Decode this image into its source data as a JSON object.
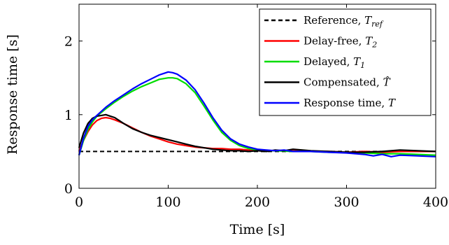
{
  "chart_data": {
    "type": "line",
    "xlabel": "Time [s]",
    "ylabel": "Response time [s]",
    "xlim": [
      0,
      400
    ],
    "ylim": [
      0,
      2.5
    ],
    "xticks": [
      "0",
      "100",
      "200",
      "300",
      "400"
    ],
    "yticks": [
      "0",
      "1",
      "2"
    ],
    "grid": false,
    "legend_position": "top-right",
    "series": [
      {
        "name": "Reference, T_ref",
        "legend_main": "Reference, ",
        "legend_var": "T",
        "legend_sub": "ref",
        "color": "#000000",
        "style": "dashed",
        "x": [
          0,
          400
        ],
        "y": [
          0.5,
          0.5
        ]
      },
      {
        "name": "Delay-free, T_2",
        "legend_main": "Delay-free, ",
        "legend_var": "T",
        "legend_sub": "2",
        "color": "#ff0000",
        "style": "solid",
        "x": [
          0,
          5,
          10,
          15,
          20,
          25,
          30,
          35,
          40,
          50,
          60,
          70,
          80,
          90,
          100,
          110,
          120,
          130,
          140,
          150,
          160,
          170,
          180,
          190,
          200,
          220,
          240,
          260,
          280,
          300,
          320,
          340,
          360,
          380,
          400
        ],
        "y": [
          0.5,
          0.65,
          0.77,
          0.86,
          0.92,
          0.95,
          0.96,
          0.95,
          0.93,
          0.88,
          0.82,
          0.76,
          0.71,
          0.67,
          0.63,
          0.6,
          0.58,
          0.56,
          0.55,
          0.54,
          0.54,
          0.53,
          0.53,
          0.52,
          0.52,
          0.51,
          0.51,
          0.5,
          0.5,
          0.49,
          0.5,
          0.49,
          0.5,
          0.5,
          0.5
        ]
      },
      {
        "name": "Delayed, T_1",
        "legend_main": "Delayed, ",
        "legend_var": "T",
        "legend_sub": "1",
        "color": "#00dd00",
        "style": "solid",
        "x": [
          0,
          5,
          10,
          15,
          20,
          30,
          40,
          50,
          60,
          70,
          80,
          90,
          100,
          105,
          110,
          120,
          130,
          140,
          150,
          160,
          170,
          180,
          190,
          200,
          210,
          220,
          240,
          260,
          280,
          300,
          320,
          340,
          360,
          380,
          400
        ],
        "y": [
          0.45,
          0.65,
          0.8,
          0.9,
          0.98,
          1.08,
          1.17,
          1.25,
          1.32,
          1.38,
          1.43,
          1.48,
          1.5,
          1.5,
          1.49,
          1.42,
          1.3,
          1.12,
          0.93,
          0.76,
          0.65,
          0.58,
          0.54,
          0.52,
          0.51,
          0.51,
          0.5,
          0.5,
          0.49,
          0.49,
          0.48,
          0.47,
          0.47,
          0.46,
          0.45
        ]
      },
      {
        "name": "Compensated, T̂",
        "legend_main": "Compensated, ",
        "legend_var": "T̂",
        "legend_sub": "",
        "color": "#000000",
        "style": "solid",
        "x": [
          0,
          5,
          10,
          15,
          20,
          25,
          30,
          35,
          40,
          45,
          50,
          60,
          70,
          80,
          90,
          100,
          110,
          120,
          130,
          140,
          150,
          160,
          170,
          180,
          190,
          200,
          210,
          220,
          230,
          240,
          260,
          280,
          300,
          320,
          340,
          360,
          380,
          400
        ],
        "y": [
          0.55,
          0.75,
          0.88,
          0.95,
          0.98,
          0.99,
          1.0,
          0.98,
          0.96,
          0.92,
          0.88,
          0.81,
          0.76,
          0.72,
          0.69,
          0.66,
          0.63,
          0.6,
          0.57,
          0.55,
          0.53,
          0.52,
          0.51,
          0.51,
          0.5,
          0.51,
          0.5,
          0.52,
          0.51,
          0.53,
          0.51,
          0.5,
          0.49,
          0.49,
          0.5,
          0.52,
          0.51,
          0.5
        ]
      },
      {
        "name": "Response time, T",
        "legend_main": "Response time, ",
        "legend_var": "T",
        "legend_sub": "",
        "color": "#0000ff",
        "style": "solid",
        "x": [
          0,
          5,
          10,
          15,
          20,
          30,
          40,
          50,
          60,
          70,
          80,
          90,
          95,
          100,
          105,
          110,
          120,
          130,
          140,
          150,
          160,
          170,
          180,
          190,
          200,
          210,
          220,
          230,
          240,
          260,
          280,
          300,
          320,
          330,
          340,
          350,
          360,
          380,
          400
        ],
        "y": [
          0.45,
          0.68,
          0.84,
          0.93,
          0.99,
          1.1,
          1.19,
          1.27,
          1.35,
          1.42,
          1.48,
          1.54,
          1.56,
          1.58,
          1.57,
          1.55,
          1.47,
          1.34,
          1.16,
          0.96,
          0.79,
          0.67,
          0.6,
          0.56,
          0.53,
          0.52,
          0.51,
          0.52,
          0.5,
          0.5,
          0.49,
          0.48,
          0.46,
          0.44,
          0.46,
          0.43,
          0.45,
          0.44,
          0.43
        ]
      }
    ]
  }
}
